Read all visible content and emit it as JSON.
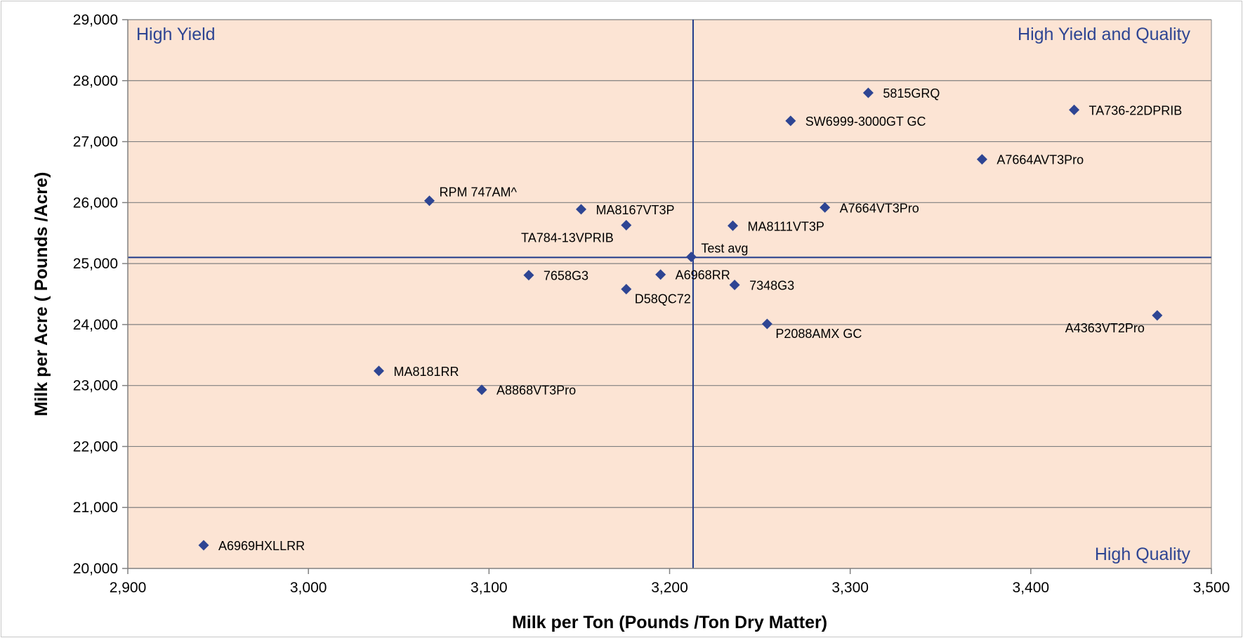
{
  "chart_data": {
    "type": "scatter",
    "title": "",
    "xlabel": "Milk per Ton (Pounds /Ton Dry Matter)",
    "ylabel": "Milk per Acre ( Pounds /Acre)",
    "xlim": [
      2900,
      3500
    ],
    "ylim": [
      20000,
      29000
    ],
    "x_ticks": [
      2900,
      3000,
      3100,
      3200,
      3300,
      3400,
      3500
    ],
    "x_tick_labels": [
      "2,900",
      "3,000",
      "3,100",
      "3,200",
      "3,300",
      "3,400",
      "3,500"
    ],
    "y_ticks": [
      20000,
      21000,
      22000,
      23000,
      24000,
      25000,
      26000,
      27000,
      28000,
      29000
    ],
    "y_tick_labels": [
      "20,000",
      "21,000",
      "22,000",
      "23,000",
      "24,000",
      "25,000",
      "26,000",
      "27,000",
      "28,000",
      "29,000"
    ],
    "grid": "horizontal",
    "marker": "diamond",
    "reference_lines": {
      "x": 3213,
      "y": 25100
    },
    "quadrant_labels": [
      {
        "text": "High Yield",
        "position": "top-left"
      },
      {
        "text": "High Yield and Quality",
        "position": "top-right"
      },
      {
        "text": "High Quality",
        "position": "bottom-right"
      }
    ],
    "points": [
      {
        "label": "5815GRQ",
        "x": 3310,
        "y": 27800,
        "label_side": "right"
      },
      {
        "label": "TA736-22DPRIB",
        "x": 3424,
        "y": 27520,
        "label_side": "right"
      },
      {
        "label": "SW6999-3000GT GC",
        "x": 3267,
        "y": 27340,
        "label_side": "right"
      },
      {
        "label": "A7664AVT3Pro",
        "x": 3373,
        "y": 26710,
        "label_side": "right"
      },
      {
        "label": "RPM 747AM^",
        "x": 3067,
        "y": 26030,
        "label_side": "above-right"
      },
      {
        "label": "MA8167VT3P",
        "x": 3151,
        "y": 25890,
        "label_side": "right"
      },
      {
        "label": "A7664VT3Pro",
        "x": 3286,
        "y": 25920,
        "label_side": "right"
      },
      {
        "label": "TA784-13VPRIB",
        "x": 3176,
        "y": 25630,
        "label_side": "below-left"
      },
      {
        "label": "MA8111VT3P",
        "x": 3235,
        "y": 25620,
        "label_side": "right"
      },
      {
        "label": "Test avg",
        "x": 3212,
        "y": 25110,
        "label_side": "above-right"
      },
      {
        "label": "7658G3",
        "x": 3122,
        "y": 24810,
        "label_side": "right"
      },
      {
        "label": "A6968RR",
        "x": 3195,
        "y": 24820,
        "label_side": "right"
      },
      {
        "label": "D58QC72",
        "x": 3176,
        "y": 24580,
        "label_side": "below-right"
      },
      {
        "label": "7348G3",
        "x": 3236,
        "y": 24650,
        "label_side": "right"
      },
      {
        "label": "P2088AMX GC",
        "x": 3254,
        "y": 24010,
        "label_side": "below-right"
      },
      {
        "label": "A4363VT2Pro",
        "x": 3470,
        "y": 24150,
        "label_side": "below-left"
      },
      {
        "label": "MA8181RR",
        "x": 3039,
        "y": 23240,
        "label_side": "right"
      },
      {
        "label": "A8868VT3Pro",
        "x": 3096,
        "y": 22930,
        "label_side": "right"
      },
      {
        "label": "A6969HXLLRR",
        "x": 2942,
        "y": 20380,
        "label_side": "right"
      }
    ]
  },
  "colors": {
    "plot_background": "#FCE4D4",
    "gridline": "#808080",
    "marker": "#2E4593",
    "reference_line": "#1F3A8A",
    "quadrant_label": "#2E4593",
    "frame": "#C8C8C8"
  }
}
